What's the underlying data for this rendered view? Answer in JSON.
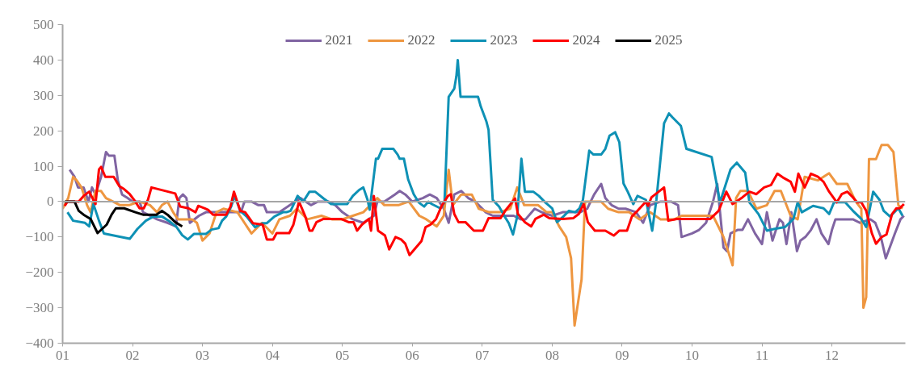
{
  "chart_data": {
    "type": "line",
    "legend": "top",
    "grid": false,
    "line_style": "solid",
    "marker": "none",
    "xlim": [
      1,
      13.05
    ],
    "ylim": [
      -400,
      500
    ],
    "xticks": [
      {
        "value": 1,
        "label": "01"
      },
      {
        "value": 2,
        "label": "02"
      },
      {
        "value": 3,
        "label": "03"
      },
      {
        "value": 4,
        "label": "04"
      },
      {
        "value": 5,
        "label": "05"
      },
      {
        "value": 6,
        "label": "06"
      },
      {
        "value": 7,
        "label": "07"
      },
      {
        "value": 8,
        "label": "08"
      },
      {
        "value": 9,
        "label": "09"
      },
      {
        "value": 10,
        "label": "10"
      },
      {
        "value": 11,
        "label": "11"
      },
      {
        "value": 12,
        "label": "12"
      }
    ],
    "yticks": [
      -400,
      -300,
      -200,
      -100,
      0,
      100,
      200,
      300,
      400,
      500
    ],
    "ref_lines": [
      {
        "axis": "y",
        "value": 0,
        "color": "#a6a6a6"
      }
    ],
    "series": [
      {
        "name": "2021",
        "color": "#8064a2",
        "x": [
          1.1,
          1.17,
          1.22,
          1.3,
          1.37,
          1.42,
          1.47,
          1.55,
          1.62,
          1.66,
          1.74,
          1.79,
          1.85,
          1.93,
          2.0,
          2.1,
          2.15,
          2.25,
          2.35,
          2.5,
          2.62,
          2.67,
          2.72,
          2.77,
          2.82,
          2.95,
          3.05,
          3.2,
          3.4,
          3.55,
          3.6,
          3.7,
          3.8,
          3.88,
          3.92,
          4.1,
          4.25,
          4.4,
          4.55,
          4.65,
          4.8,
          4.9,
          5.0,
          5.15,
          5.3,
          5.45,
          5.5,
          5.6,
          5.75,
          5.82,
          5.9,
          6.0,
          6.15,
          6.25,
          6.35,
          6.45,
          6.52,
          6.6,
          6.7,
          6.8,
          6.9,
          7.05,
          7.15,
          7.3,
          7.45,
          7.55,
          7.62,
          7.75,
          7.85,
          8.0,
          8.15,
          8.3,
          8.4,
          8.5,
          8.6,
          8.7,
          8.76,
          8.85,
          8.95,
          9.05,
          9.2,
          9.3,
          9.4,
          9.55,
          9.7,
          9.8,
          9.85,
          10.0,
          10.1,
          10.2,
          10.3,
          10.36,
          10.45,
          10.5,
          10.55,
          10.65,
          10.72,
          10.8,
          10.9,
          11.0,
          11.07,
          11.15,
          11.25,
          11.3,
          11.35,
          11.42,
          11.5,
          11.55,
          11.62,
          11.7,
          11.78,
          11.85,
          11.95,
          12.0,
          12.05,
          12.3,
          12.4,
          12.55,
          12.62,
          12.7,
          12.77,
          12.9,
          12.98,
          13.03
        ],
        "values": [
          90,
          70,
          40,
          40,
          0,
          40,
          20,
          70,
          140,
          130,
          130,
          60,
          20,
          10,
          0,
          0,
          -30,
          -40,
          -50,
          -60,
          -70,
          10,
          20,
          10,
          -60,
          -40,
          -30,
          -30,
          -30,
          -30,
          0,
          0,
          -10,
          -10,
          -30,
          -30,
          -10,
          10,
          -10,
          0,
          0,
          -10,
          -30,
          -50,
          -60,
          -40,
          0,
          0,
          20,
          30,
          20,
          0,
          10,
          20,
          10,
          -20,
          -60,
          20,
          30,
          10,
          0,
          -30,
          -40,
          -40,
          -40,
          -50,
          -50,
          -20,
          -30,
          -40,
          -30,
          -30,
          -30,
          -20,
          20,
          50,
          10,
          -10,
          -20,
          -20,
          -30,
          -60,
          -10,
          0,
          0,
          -10,
          -100,
          -90,
          -80,
          -60,
          0,
          50,
          -130,
          -140,
          -90,
          -80,
          -80,
          -50,
          -90,
          -120,
          -30,
          -110,
          -50,
          -60,
          -120,
          -30,
          -140,
          -110,
          -100,
          -80,
          -50,
          -90,
          -120,
          -80,
          -50,
          -50,
          -60,
          -50,
          -60,
          -100,
          -160,
          -90,
          -50,
          -40
        ]
      },
      {
        "name": "2022",
        "color": "#ee9640",
        "x": [
          1.0,
          1.08,
          1.15,
          1.2,
          1.27,
          1.35,
          1.4,
          1.47,
          1.55,
          1.62,
          1.72,
          1.82,
          1.95,
          2.1,
          2.25,
          2.35,
          2.42,
          2.5,
          2.58,
          2.65,
          2.75,
          2.85,
          2.92,
          3.0,
          3.1,
          3.2,
          3.3,
          3.5,
          3.6,
          3.7,
          3.85,
          4.0,
          4.1,
          4.25,
          4.35,
          4.5,
          4.7,
          4.85,
          5.0,
          5.15,
          5.3,
          5.4,
          5.5,
          5.6,
          5.8,
          5.95,
          6.1,
          6.2,
          6.35,
          6.45,
          6.52,
          6.58,
          6.7,
          6.85,
          6.95,
          7.1,
          7.25,
          7.4,
          7.5,
          7.6,
          7.8,
          7.92,
          8.0,
          8.1,
          8.2,
          8.27,
          8.32,
          8.42,
          8.47,
          8.6,
          8.7,
          8.8,
          8.95,
          9.1,
          9.25,
          9.4,
          9.55,
          9.75,
          9.85,
          10.1,
          10.3,
          10.45,
          10.58,
          10.63,
          10.69,
          10.8,
          10.92,
          11.07,
          11.18,
          11.27,
          11.41,
          11.51,
          11.61,
          11.8,
          11.96,
          12.07,
          12.22,
          12.34,
          12.42,
          12.45,
          12.49,
          12.53,
          12.63,
          12.71,
          12.8,
          12.88,
          12.95,
          13.01
        ],
        "values": [
          -20,
          10,
          70,
          60,
          40,
          -10,
          -30,
          30,
          30,
          10,
          0,
          -10,
          -10,
          0,
          -10,
          -30,
          -10,
          0,
          -30,
          -50,
          -50,
          -50,
          -60,
          -110,
          -90,
          -30,
          -20,
          -30,
          -60,
          -90,
          -60,
          -90,
          -50,
          -40,
          -20,
          -50,
          -40,
          -50,
          -50,
          -40,
          -30,
          -10,
          10,
          -10,
          -10,
          0,
          -40,
          -50,
          -70,
          -40,
          90,
          -10,
          20,
          20,
          -20,
          -30,
          -30,
          -20,
          40,
          -10,
          -10,
          -30,
          -30,
          -70,
          -100,
          -160,
          -350,
          -220,
          0,
          0,
          0,
          -20,
          -30,
          -30,
          -50,
          -30,
          -50,
          -50,
          -40,
          -40,
          -40,
          -100,
          -180,
          10,
          30,
          30,
          -20,
          -10,
          30,
          30,
          -40,
          -50,
          70,
          60,
          80,
          50,
          50,
          0,
          -20,
          -300,
          -270,
          120,
          120,
          160,
          160,
          140,
          -10,
          -20
        ]
      },
      {
        "name": "2023",
        "color": "#0e91b5",
        "x": [
          1.07,
          1.15,
          1.32,
          1.38,
          1.44,
          1.52,
          1.59,
          1.96,
          2.0,
          2.07,
          2.19,
          2.3,
          2.42,
          2.53,
          2.63,
          2.71,
          2.79,
          2.88,
          3.05,
          3.13,
          3.23,
          3.28,
          3.34,
          3.41,
          3.46,
          3.54,
          3.63,
          3.75,
          3.86,
          3.92,
          4.03,
          4.15,
          4.2,
          4.26,
          4.36,
          4.44,
          4.53,
          4.61,
          4.73,
          4.84,
          5.07,
          5.15,
          5.24,
          5.3,
          5.36,
          5.39,
          5.48,
          5.51,
          5.57,
          5.73,
          5.79,
          5.82,
          5.88,
          5.94,
          6.02,
          6.09,
          6.17,
          6.23,
          6.28,
          6.4,
          6.46,
          6.52,
          6.6,
          6.63,
          6.65,
          6.69,
          6.94,
          6.98,
          7.06,
          7.09,
          7.15,
          7.24,
          7.32,
          7.38,
          7.44,
          7.5,
          7.56,
          7.61,
          7.73,
          7.81,
          7.9,
          8.0,
          8.07,
          8.16,
          8.24,
          8.33,
          8.39,
          8.44,
          8.53,
          8.59,
          8.7,
          8.76,
          8.82,
          8.9,
          8.96,
          9.02,
          9.08,
          9.16,
          9.22,
          9.34,
          9.43,
          9.49,
          9.6,
          9.67,
          9.72,
          9.84,
          9.92,
          10.28,
          10.4,
          10.55,
          10.64,
          10.76,
          10.82,
          10.95,
          11.07,
          11.18,
          11.33,
          11.45,
          11.51,
          11.57,
          11.73,
          11.88,
          11.96,
          12.03,
          12.19,
          12.3,
          12.42,
          12.49,
          12.59,
          12.68,
          12.74,
          12.83,
          12.95,
          13.01
        ],
        "values": [
          -30,
          -54,
          -60,
          -70,
          -7,
          -54,
          -90,
          -105,
          -95,
          -77,
          -54,
          -42,
          -42,
          -56,
          -72,
          -95,
          -107,
          -91,
          -91,
          -79,
          -75,
          -54,
          -42,
          -14,
          16,
          -26,
          -42,
          -72,
          -61,
          -61,
          -42,
          -30,
          -30,
          -26,
          16,
          0,
          28,
          28,
          9,
          -7,
          -7,
          16,
          33,
          40,
          5,
          -23,
          121,
          121,
          149,
          149,
          133,
          121,
          121,
          63,
          21,
          -2,
          -14,
          0,
          -7,
          -19,
          -2,
          296,
          319,
          354,
          400,
          296,
          296,
          268,
          226,
          203,
          5,
          -14,
          -42,
          -61,
          -93,
          -42,
          121,
          28,
          28,
          16,
          -2,
          -19,
          -58,
          -42,
          -26,
          -30,
          -19,
          5,
          144,
          133,
          133,
          149,
          186,
          196,
          168,
          51,
          28,
          -7,
          16,
          5,
          -82,
          5,
          221,
          249,
          238,
          214,
          149,
          126,
          -2,
          91,
          110,
          82,
          -2,
          -35,
          -82,
          -77,
          -72,
          -49,
          -2,
          -30,
          -12,
          -19,
          -35,
          -2,
          -2,
          -26,
          -49,
          -72,
          28,
          5,
          -26,
          -42,
          -19,
          -40
        ]
      },
      {
        "name": "2024",
        "color": "#ff0000",
        "x": [
          1.03,
          1.07,
          1.23,
          1.3,
          1.38,
          1.47,
          1.52,
          1.55,
          1.61,
          1.73,
          1.81,
          1.88,
          1.96,
          2.04,
          2.1,
          2.16,
          2.22,
          2.27,
          2.61,
          2.68,
          2.8,
          2.9,
          2.94,
          3.08,
          3.15,
          3.34,
          3.4,
          3.45,
          3.54,
          3.61,
          3.72,
          3.86,
          3.92,
          4.01,
          4.06,
          4.24,
          4.3,
          4.38,
          4.47,
          4.53,
          4.57,
          4.63,
          4.73,
          4.98,
          5.09,
          5.16,
          5.21,
          5.28,
          5.38,
          5.41,
          5.45,
          5.51,
          5.61,
          5.67,
          5.76,
          5.84,
          5.9,
          5.96,
          6.13,
          6.19,
          6.26,
          6.34,
          6.42,
          6.51,
          6.55,
          6.6,
          6.66,
          6.76,
          6.88,
          7.01,
          7.09,
          7.26,
          7.34,
          7.47,
          7.51,
          7.61,
          7.7,
          7.76,
          7.88,
          7.96,
          8.15,
          8.3,
          8.38,
          8.45,
          8.51,
          8.61,
          8.76,
          8.88,
          8.96,
          9.07,
          9.14,
          9.22,
          9.34,
          9.37,
          9.42,
          9.6,
          9.66,
          9.78,
          10.26,
          10.38,
          10.49,
          10.58,
          10.72,
          10.82,
          10.92,
          11.03,
          11.13,
          11.22,
          11.3,
          11.41,
          11.47,
          11.52,
          11.61,
          11.7,
          11.8,
          11.88,
          11.96,
          12.07,
          12.14,
          12.22,
          12.3,
          12.36,
          12.42,
          12.49,
          12.57,
          12.63,
          12.71,
          12.78,
          12.86,
          12.92,
          12.97,
          13.03
        ],
        "values": [
          -12,
          0,
          0,
          16,
          28,
          -7,
          91,
          98,
          70,
          70,
          44,
          35,
          21,
          0,
          -19,
          -19,
          5,
          40,
          23,
          -14,
          -19,
          -30,
          -12,
          -23,
          -37,
          -37,
          -14,
          28,
          -26,
          -30,
          -61,
          -65,
          -107,
          -107,
          -89,
          -89,
          -65,
          0,
          -42,
          -82,
          -82,
          -58,
          -49,
          -49,
          -58,
          -58,
          -82,
          -65,
          -49,
          -82,
          16,
          -82,
          -96,
          -135,
          -100,
          -107,
          -119,
          -151,
          -112,
          -72,
          -65,
          -49,
          -12,
          16,
          21,
          -35,
          -58,
          -58,
          -82,
          -82,
          -47,
          -47,
          -23,
          9,
          -35,
          -58,
          -70,
          -49,
          -37,
          -47,
          -49,
          -47,
          -35,
          -7,
          -58,
          -82,
          -82,
          -96,
          -82,
          -82,
          -42,
          -26,
          0,
          -12,
          12,
          40,
          -54,
          -49,
          -49,
          -26,
          28,
          -7,
          12,
          28,
          21,
          40,
          47,
          79,
          68,
          56,
          28,
          79,
          40,
          79,
          70,
          56,
          28,
          -2,
          21,
          28,
          12,
          -2,
          -2,
          -26,
          -89,
          -119,
          -100,
          -93,
          -35,
          -19,
          -19,
          -7
        ]
      },
      {
        "name": "2025",
        "color": "#000000",
        "x": [
          1.03,
          1.17,
          1.23,
          1.3,
          1.4,
          1.5,
          1.63,
          1.7,
          1.76,
          1.88,
          2.04,
          2.15,
          2.34,
          2.42,
          2.5,
          2.61,
          2.71
        ],
        "values": [
          0,
          0,
          -26,
          -37,
          -49,
          -89,
          -65,
          -37,
          -19,
          -19,
          -30,
          -37,
          -37,
          -26,
          -37,
          -58,
          -70
        ]
      }
    ]
  }
}
